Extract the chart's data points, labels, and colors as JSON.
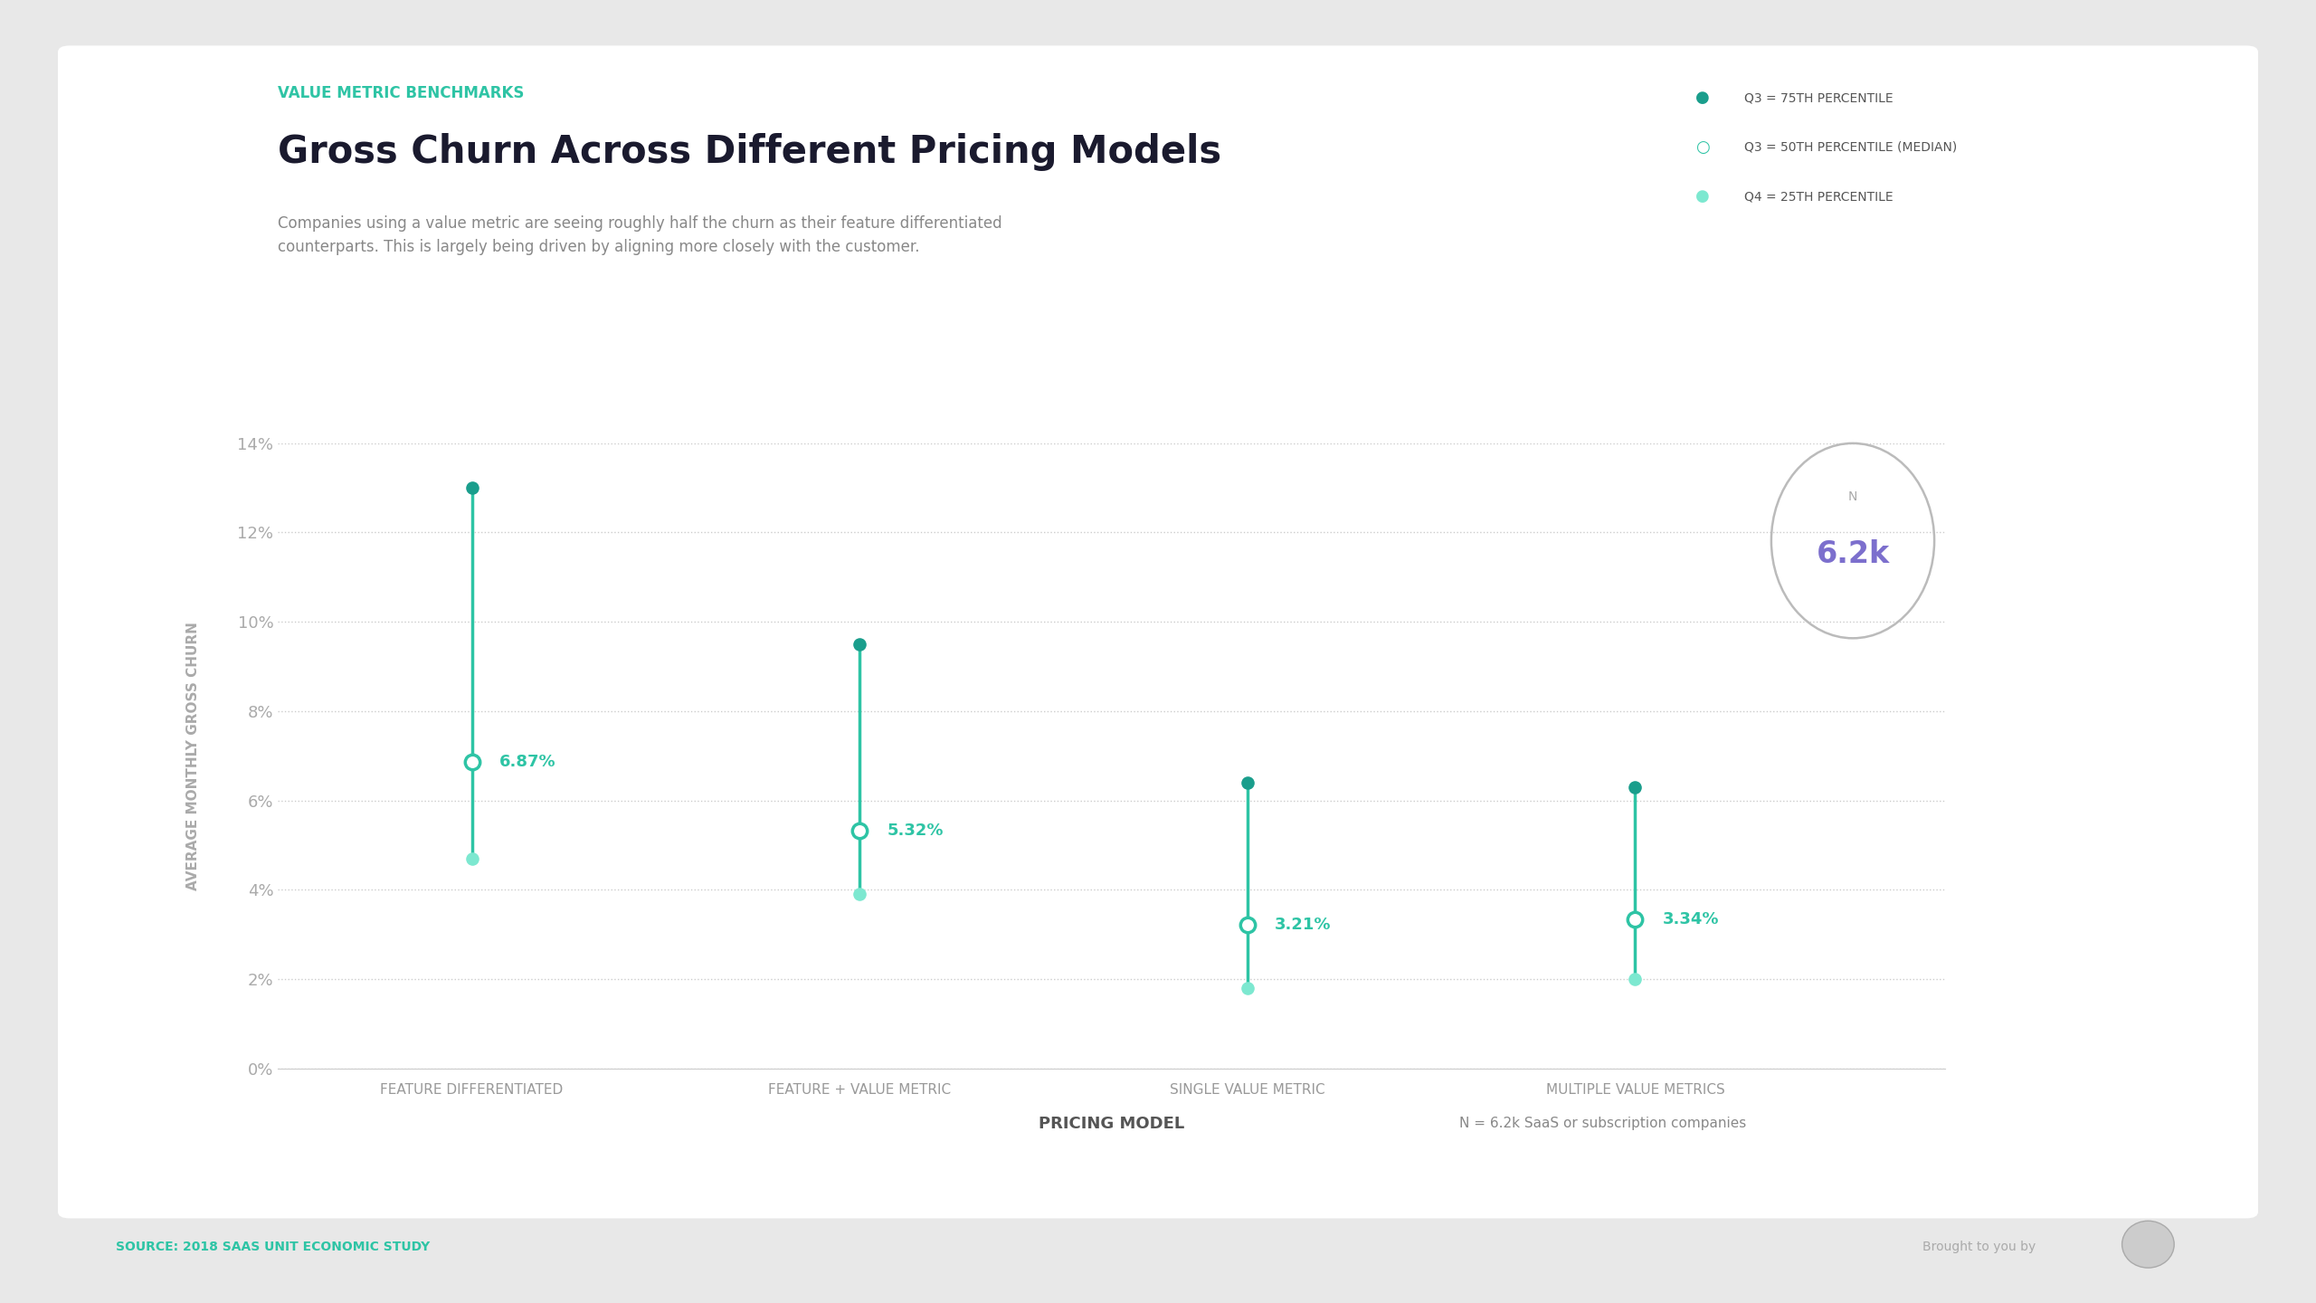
{
  "title": "Gross Churn Across Different Pricing Models",
  "subtitle_small": "VALUE METRIC BENCHMARKS",
  "subtitle_text": "Companies using a value metric are seeing roughly half the churn as their feature differentiated\ncounterparts. This is largely being driven by aligning more closely with the customer.",
  "xlabel": "PRICING MODEL",
  "ylabel": "AVERAGE MONTHLY GROSS CHURN",
  "source": "SOURCE: 2018 SAAS UNIT ECONOMIC STUDY",
  "n_label": "N = 6.2k SaaS or subscription companies",
  "n_badge_value": "6.2k",
  "categories": [
    "FEATURE DIFFERENTIATED",
    "FEATURE + VALUE METRIC",
    "SINGLE VALUE METRIC",
    "MULTIPLE VALUE METRICS"
  ],
  "q3_75th": [
    13.0,
    9.5,
    6.4,
    6.3
  ],
  "q3_50th_median": [
    6.87,
    5.32,
    3.21,
    3.34
  ],
  "q4_25th": [
    4.7,
    3.9,
    1.8,
    2.0
  ],
  "median_labels": [
    "6.87%",
    "5.32%",
    "3.21%",
    "3.34%"
  ],
  "color_75th": "#1a9e8c",
  "color_median": "#2ec4a5",
  "color_25th": "#7de8d0",
  "line_color": "#2ec4a5",
  "background_color": "#ffffff",
  "title_color": "#1a1a2e",
  "subtitle_small_color": "#2ec4a5",
  "subtitle_text_color": "#888888",
  "axis_label_color": "#aaaaaa",
  "tick_label_color": "#aaaaaa",
  "xlabel_color": "#555555",
  "legend_dot_75th": "#1a9e8c",
  "legend_dot_median": "#2ec4a5",
  "legend_dot_25th": "#7de8d0",
  "ylim": [
    0,
    14
  ],
  "yticks": [
    0,
    2,
    4,
    6,
    8,
    10,
    12,
    14
  ],
  "ytick_labels": [
    "0%",
    "2%",
    "4%",
    "6%",
    "8%",
    "10%",
    "12%",
    "14%"
  ],
  "legend_labels": [
    "Q3 = 75TH PERCENTILE",
    "Q3 = 50TH PERCENTILE (MEDIAN)",
    "Q4 = 25TH PERCENTILE"
  ],
  "figsize": [
    25.6,
    14.4
  ],
  "dpi": 100
}
